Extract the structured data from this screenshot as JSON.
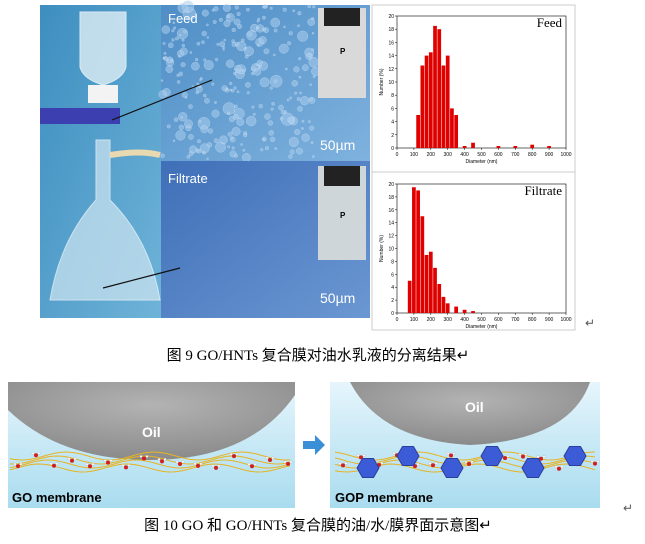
{
  "figure9": {
    "photo": {
      "feed_label": "Feed",
      "filtrate_label": "Filtrate",
      "scale_bar_feed": "50µm",
      "scale_bar_filtrate": "50µm",
      "vial_feed_label": "P",
      "vial_filtrate_label": "P"
    },
    "histograms": [
      {
        "type": "bar",
        "title": "Feed",
        "x_label": "Diameter (nm)",
        "y_label": "Number (%)",
        "color": "#e00000",
        "x": [
          125,
          150,
          175,
          200,
          225,
          250,
          275,
          300,
          325,
          350,
          400,
          450,
          600,
          700,
          800,
          900
        ],
        "values": [
          5,
          12.5,
          14,
          14.5,
          18.5,
          18,
          12.5,
          14,
          6,
          5,
          0.3,
          0.8,
          0.3,
          0.3,
          0.5,
          0.3
        ],
        "xlim": [
          0,
          1000
        ],
        "xticks": [
          0,
          100,
          200,
          300,
          400,
          500,
          600,
          700,
          800,
          900,
          1000
        ],
        "ylim": [
          0,
          20
        ],
        "yticks": [
          0,
          2,
          4,
          6,
          8,
          10,
          12,
          14,
          16,
          18,
          20
        ]
      },
      {
        "type": "bar",
        "title": "Filtrate",
        "x_label": "Diameter (nm)",
        "y_label": "Number (%)",
        "color": "#e00000",
        "x": [
          75,
          100,
          125,
          150,
          175,
          200,
          225,
          250,
          275,
          300,
          350,
          400,
          450
        ],
        "values": [
          5,
          19.5,
          19,
          15,
          9,
          9.5,
          7,
          4.5,
          2.5,
          1.5,
          1,
          0.5,
          0.3
        ],
        "xlim": [
          0,
          1000
        ],
        "xticks": [
          0,
          100,
          200,
          300,
          400,
          500,
          600,
          700,
          800,
          900,
          1000
        ],
        "ylim": [
          0,
          20
        ],
        "yticks": [
          0,
          2,
          4,
          6,
          8,
          10,
          12,
          14,
          16,
          18,
          20
        ]
      }
    ],
    "return_mark": "↵",
    "caption": "图 9 GO/HNTs 复合膜对油水乳液的分离结果↵"
  },
  "figure10": {
    "left": {
      "oil_label": "Oil",
      "membrane_label": "GO membrane"
    },
    "right": {
      "oil_label": "Oil",
      "membrane_label": "GOP membrane"
    },
    "return_mark": "↵",
    "caption": "图 10 GO 和 GO/HNTs 复合膜的油/水/膜界面示意图↵"
  }
}
